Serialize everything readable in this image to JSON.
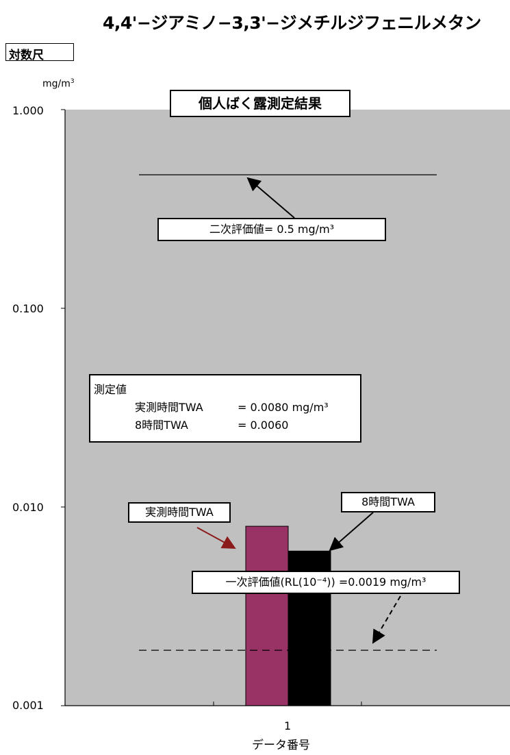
{
  "chart_data": {
    "type": "bar",
    "title": "4,4'−ジアミノ−3,3'−ジメチルジフェニルメタン",
    "subtitle": "個人ばく露測定結果",
    "scale_label": "対数尺",
    "y_unit": "mg/m",
    "y_unit_sup": "3",
    "y_scale": "log",
    "ylim": [
      0.001,
      1.0
    ],
    "ytick_labels": [
      "1.000",
      "0.100",
      "0.010",
      "0.001"
    ],
    "ytick_values": [
      1.0,
      0.1,
      0.01,
      0.001
    ],
    "xlabel": "データ番号",
    "categories": [
      "1"
    ],
    "series": [
      {
        "name": "実測時間TWA",
        "values": [
          0.008
        ],
        "color": "#993366"
      },
      {
        "name": "8時間TWA",
        "values": [
          0.006
        ],
        "color": "#000000"
      }
    ],
    "reference_lines": [
      {
        "value": 0.47,
        "style": "solid"
      },
      {
        "value": 0.0019,
        "style": "dashed"
      }
    ],
    "annotations": {
      "secondary": "二次評価値= 0.5 mg/m³",
      "primary": "一次評価値(RL(10⁻⁴)) =0.0019 mg/m³",
      "actual_label": "実測時間TWA",
      "eight_hour_label": "8時間TWA"
    },
    "measured": {
      "heading": "測定値",
      "rows": [
        {
          "label": "実測時間TWA",
          "value": "= 0.0080 mg/m³"
        },
        {
          "label": "8時間TWA",
          "value": "= 0.0060"
        }
      ]
    },
    "plot_background": "#c0c0c0",
    "grid": false
  }
}
